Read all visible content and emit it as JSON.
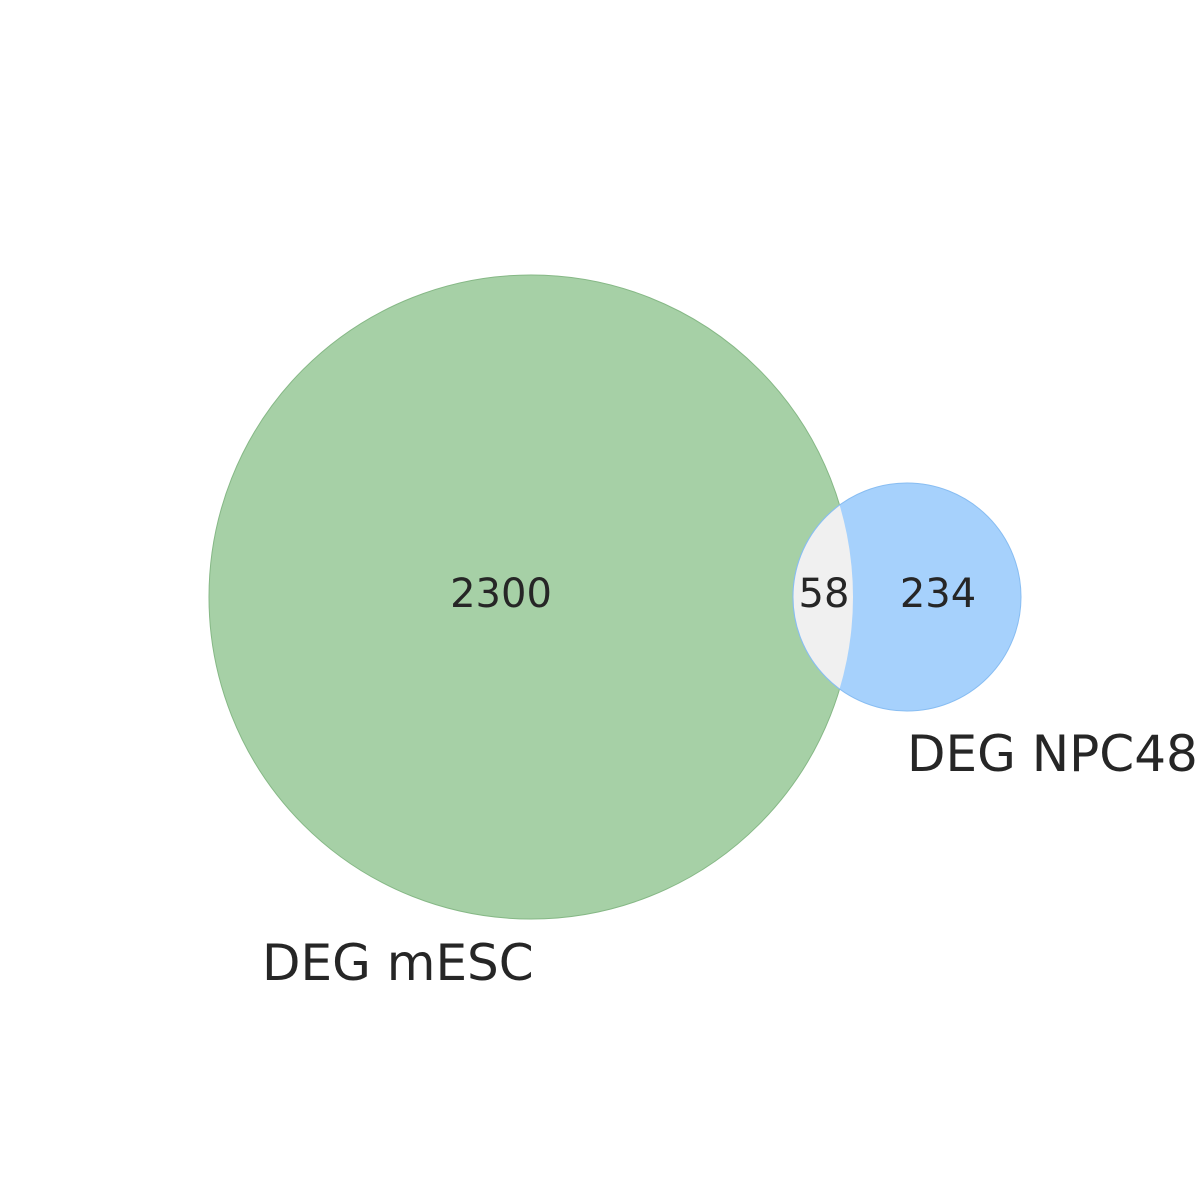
{
  "venn": {
    "sets": [
      {
        "name": "DEG mESC",
        "color": "#a6d0a6",
        "stroke": "#86b886"
      },
      {
        "name": "DEG NPC48",
        "color": "#a6d1fc",
        "stroke": "#88bdf2"
      }
    ],
    "intersection_color": "#f0f0f0",
    "counts": {
      "only_a": "2300",
      "both": "58",
      "only_b": "234"
    },
    "labels": {
      "set_a": "DEG mESC",
      "set_b": "DEG NPC48"
    }
  }
}
